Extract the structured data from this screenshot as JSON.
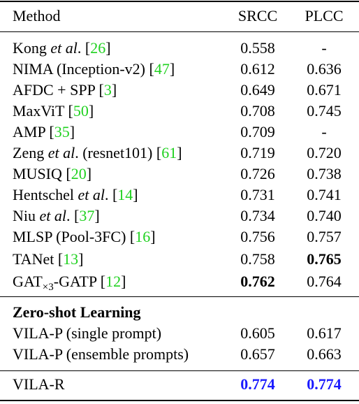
{
  "header": {
    "method": "Method",
    "srcc": "SRCC",
    "plcc": "PLCC"
  },
  "rows": [
    {
      "name_pre": "Kong ",
      "name_em": "et al",
      "name_post": ". [",
      "ref": "26",
      "name_end": "]",
      "srcc": "0.558",
      "plcc": "-"
    },
    {
      "name_pre": "NIMA (Inception-v2) [",
      "name_em": "",
      "name_post": "",
      "ref": "47",
      "name_end": "]",
      "srcc": "0.612",
      "plcc": "0.636"
    },
    {
      "name_pre": "AFDC + SPP [",
      "name_em": "",
      "name_post": "",
      "ref": "3",
      "name_end": "]",
      "srcc": "0.649",
      "plcc": "0.671"
    },
    {
      "name_pre": "MaxViT [",
      "name_em": "",
      "name_post": "",
      "ref": "50",
      "name_end": "]",
      "srcc": "0.708",
      "plcc": "0.745"
    },
    {
      "name_pre": "AMP [",
      "name_em": "",
      "name_post": "",
      "ref": "35",
      "name_end": "]",
      "srcc": "0.709",
      "plcc": "-"
    },
    {
      "name_pre": "Zeng ",
      "name_em": "et al",
      "name_post": ". (resnet101) [",
      "ref": "61",
      "name_end": "]",
      "srcc": "0.719",
      "plcc": "0.720"
    },
    {
      "name_pre": "MUSIQ [",
      "name_em": "",
      "name_post": "",
      "ref": "20",
      "name_end": "]",
      "srcc": "0.726",
      "plcc": "0.738"
    },
    {
      "name_pre": "Hentschel ",
      "name_em": "et al",
      "name_post": ". [",
      "ref": "14",
      "name_end": "]",
      "srcc": "0.731",
      "plcc": "0.741"
    },
    {
      "name_pre": "Niu ",
      "name_em": "et al",
      "name_post": ". [",
      "ref": "37",
      "name_end": "]",
      "srcc": "0.734",
      "plcc": "0.740"
    },
    {
      "name_pre": "MLSP (Pool-3FC) [",
      "name_em": "",
      "name_post": "",
      "ref": "16",
      "name_end": "]",
      "srcc": "0.756",
      "plcc": "0.757"
    },
    {
      "name_pre": "TANet [",
      "name_em": "",
      "name_post": "",
      "ref": "13",
      "name_end": "]",
      "srcc": "0.758",
      "plcc": "0.765"
    }
  ],
  "gat_row": {
    "name_a": "GAT",
    "name_sub": "×3",
    "name_b": "-GATP [",
    "ref": "12",
    "name_end": "]",
    "srcc": "0.762",
    "plcc": "0.764"
  },
  "zero_shot": {
    "title": "Zero-shot Learning",
    "rows": [
      {
        "name": "VILA-P (single prompt)",
        "srcc": "0.605",
        "plcc": "0.617"
      },
      {
        "name": "VILA-P (ensemble prompts)",
        "srcc": "0.657",
        "plcc": "0.663"
      }
    ]
  },
  "final_row": {
    "name": "VILA-R",
    "srcc": "0.774",
    "plcc": "0.774"
  },
  "colors": {
    "reference_link": "#1fd11f",
    "highlight_best": "#1a1aff",
    "text": "#000000",
    "rule": "#000000"
  }
}
